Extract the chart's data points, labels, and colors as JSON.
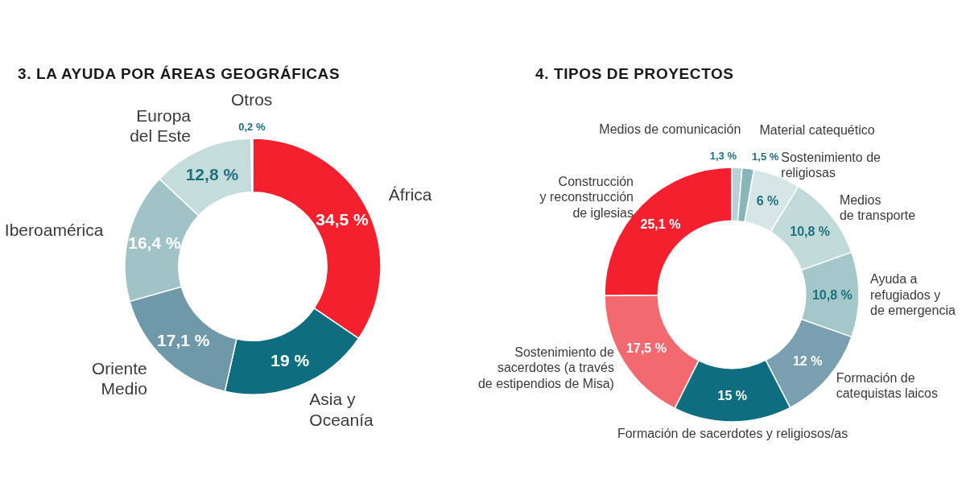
{
  "chart_data": [
    {
      "type": "donut",
      "title": "3. LA AYUDA POR ÁREAS GEOGRÁFICAS",
      "categories": [
        "África",
        "Asia y\nOceanía",
        "Oriente\nMedio",
        "Iberoamérica",
        "Europa\ndel Este",
        "Otros"
      ],
      "values": [
        34.5,
        19,
        17.1,
        16.4,
        12.8,
        0.2
      ],
      "value_labels": [
        "34,5 %",
        "19 %",
        "17,1 %",
        "16,4 %",
        "12,8 %",
        "0,2 %"
      ],
      "colors": [
        "#f4202e",
        "#0e6e80",
        "#6f98a8",
        "#9fc3c6",
        "#c5dcdc",
        "#d8e8e8"
      ]
    },
    {
      "type": "donut",
      "title": "4. TIPOS DE PROYECTOS",
      "categories": [
        "Medios de comunicación",
        "Material catequético",
        "Sostenimiento de\nreligiosas",
        "Medios\nde transporte",
        "Ayuda a\nrefugiados y\nde emergencia",
        "Formación de\ncatequistas laicos",
        "Formación de sacerdotes y religiosos/as",
        "Sostenimiento de\nsacerdotes (a través\nde estipendios de Misa)",
        "Construcción\ny reconstrucción\nde iglesias"
      ],
      "values": [
        1.3,
        1.5,
        6,
        10.8,
        10.8,
        12,
        15,
        17.5,
        25.1
      ],
      "value_labels": [
        "1,3 %",
        "1,5 %",
        "6 %",
        "10,8 %",
        "10,8 %",
        "12 %",
        "15 %",
        "17,5 %",
        "25,1 %"
      ],
      "colors": [
        "#b6d2d4",
        "#8ab5b8",
        "#d6e6e6",
        "#c1dada",
        "#a4c7c9",
        "#7a9fb0",
        "#0e6e80",
        "#f26a6f",
        "#f4202e"
      ]
    }
  ]
}
